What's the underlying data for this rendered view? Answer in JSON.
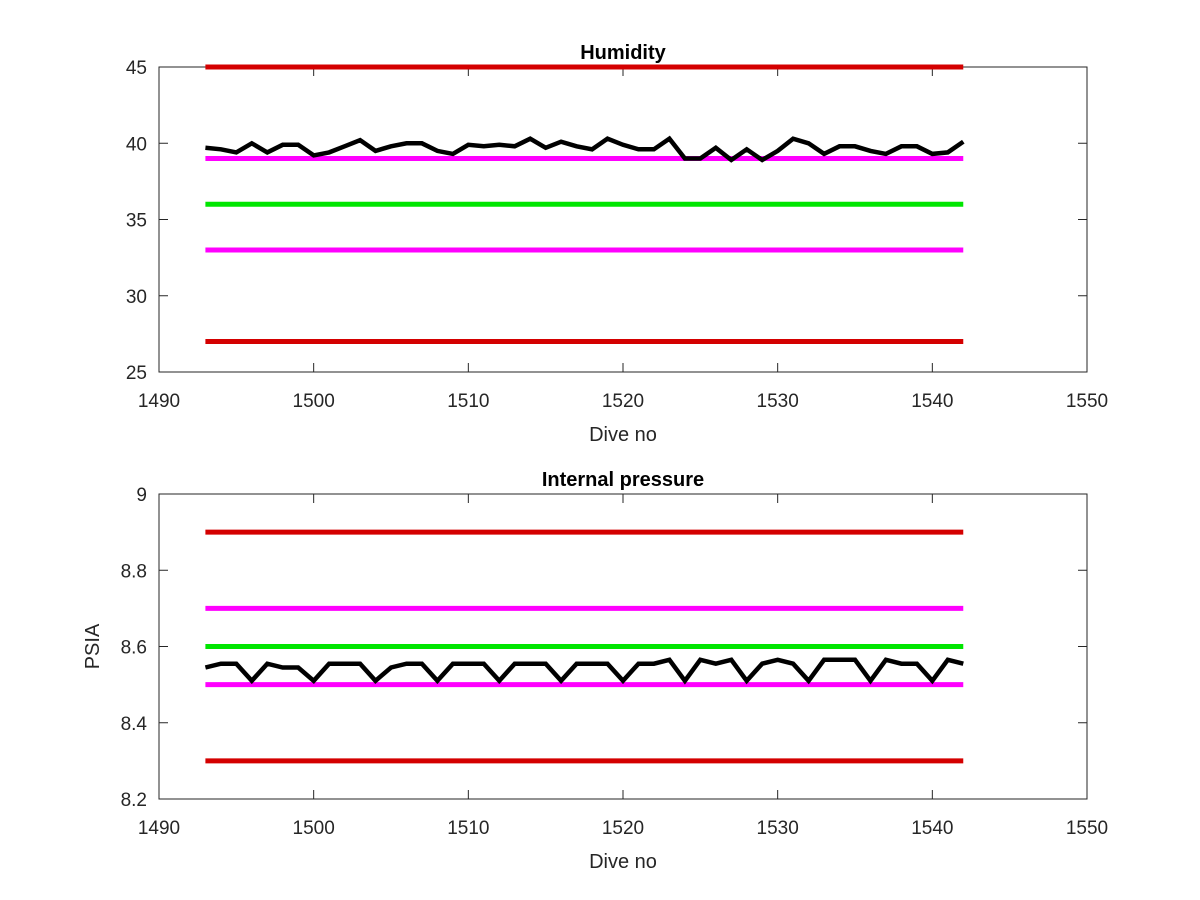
{
  "chart_data": [
    {
      "type": "line",
      "title": "Humidity",
      "xlabel": "Dive no",
      "ylabel": "",
      "xlim": [
        1490,
        1550
      ],
      "ylim": [
        25,
        45
      ],
      "xticks": [
        1490,
        1500,
        1510,
        1520,
        1530,
        1540,
        1550
      ],
      "yticks": [
        25,
        30,
        35,
        40,
        45
      ],
      "xtick_labels": [
        "1490",
        "1500",
        "1510",
        "1520",
        "1530",
        "1540",
        "1550"
      ],
      "ytick_labels": [
        "25",
        "30",
        "35",
        "40",
        "45"
      ],
      "grid": false,
      "reference_lines": [
        {
          "y": 45,
          "x_range": [
            1493,
            1542
          ],
          "color": "#d40000"
        },
        {
          "y": 39,
          "x_range": [
            1493,
            1542
          ],
          "color": "#ff00ff"
        },
        {
          "y": 36,
          "x_range": [
            1493,
            1542
          ],
          "color": "#00e600"
        },
        {
          "y": 33,
          "x_range": [
            1493,
            1542
          ],
          "color": "#ff00ff"
        },
        {
          "y": 27,
          "x_range": [
            1493,
            1542
          ],
          "color": "#d40000"
        }
      ],
      "series": [
        {
          "color": "#000000",
          "x": [
            1493,
            1494,
            1495,
            1496,
            1497,
            1498,
            1499,
            1500,
            1501,
            1502,
            1503,
            1504,
            1505,
            1506,
            1507,
            1508,
            1509,
            1510,
            1511,
            1512,
            1513,
            1514,
            1515,
            1516,
            1517,
            1518,
            1519,
            1520,
            1521,
            1522,
            1523,
            1524,
            1525,
            1526,
            1527,
            1528,
            1529,
            1530,
            1531,
            1532,
            1533,
            1534,
            1535,
            1536,
            1537,
            1538,
            1539,
            1540,
            1541,
            1542
          ],
          "values": [
            39.7,
            39.6,
            39.4,
            40.0,
            39.4,
            39.9,
            39.9,
            39.2,
            39.4,
            39.8,
            40.2,
            39.5,
            39.8,
            40.0,
            40.0,
            39.5,
            39.3,
            39.9,
            39.8,
            39.9,
            39.8,
            40.3,
            39.7,
            40.1,
            39.8,
            39.6,
            40.3,
            39.9,
            39.6,
            39.6,
            40.3,
            39.0,
            39.0,
            39.7,
            38.9,
            39.6,
            38.9,
            39.5,
            40.3,
            40.0,
            39.3,
            39.8,
            39.8,
            39.5,
            39.3,
            39.8,
            39.8,
            39.3,
            39.4,
            40.1
          ]
        }
      ]
    },
    {
      "type": "line",
      "title": "Internal pressure",
      "xlabel": "Dive no",
      "ylabel": "PSIA",
      "xlim": [
        1490,
        1550
      ],
      "ylim": [
        8.2,
        9
      ],
      "xticks": [
        1490,
        1500,
        1510,
        1520,
        1530,
        1540,
        1550
      ],
      "yticks": [
        8.2,
        8.4,
        8.6,
        8.8,
        9
      ],
      "xtick_labels": [
        "1490",
        "1500",
        "1510",
        "1520",
        "1530",
        "1540",
        "1550"
      ],
      "ytick_labels": [
        "8.2",
        "8.4",
        "8.6",
        "8.8",
        "9"
      ],
      "grid": false,
      "reference_lines": [
        {
          "y": 8.9,
          "x_range": [
            1493,
            1542
          ],
          "color": "#d40000"
        },
        {
          "y": 8.7,
          "x_range": [
            1493,
            1542
          ],
          "color": "#ff00ff"
        },
        {
          "y": 8.6,
          "x_range": [
            1493,
            1542
          ],
          "color": "#00e600"
        },
        {
          "y": 8.5,
          "x_range": [
            1493,
            1542
          ],
          "color": "#ff00ff"
        },
        {
          "y": 8.3,
          "x_range": [
            1493,
            1542
          ],
          "color": "#d40000"
        }
      ],
      "series": [
        {
          "color": "#000000",
          "x": [
            1493,
            1494,
            1495,
            1496,
            1497,
            1498,
            1499,
            1500,
            1501,
            1502,
            1503,
            1504,
            1505,
            1506,
            1507,
            1508,
            1509,
            1510,
            1511,
            1512,
            1513,
            1514,
            1515,
            1516,
            1517,
            1518,
            1519,
            1520,
            1521,
            1522,
            1523,
            1524,
            1525,
            1526,
            1527,
            1528,
            1529,
            1530,
            1531,
            1532,
            1533,
            1534,
            1535,
            1536,
            1537,
            1538,
            1539,
            1540,
            1541,
            1542
          ],
          "values": [
            8.545,
            8.555,
            8.555,
            8.51,
            8.555,
            8.545,
            8.545,
            8.51,
            8.555,
            8.555,
            8.555,
            8.51,
            8.545,
            8.555,
            8.555,
            8.51,
            8.555,
            8.555,
            8.555,
            8.51,
            8.555,
            8.555,
            8.555,
            8.51,
            8.555,
            8.555,
            8.555,
            8.51,
            8.555,
            8.555,
            8.565,
            8.51,
            8.565,
            8.555,
            8.565,
            8.51,
            8.555,
            8.565,
            8.555,
            8.51,
            8.565,
            8.565,
            8.565,
            8.51,
            8.565,
            8.555,
            8.555,
            8.51,
            8.565,
            8.555
          ]
        }
      ]
    }
  ]
}
